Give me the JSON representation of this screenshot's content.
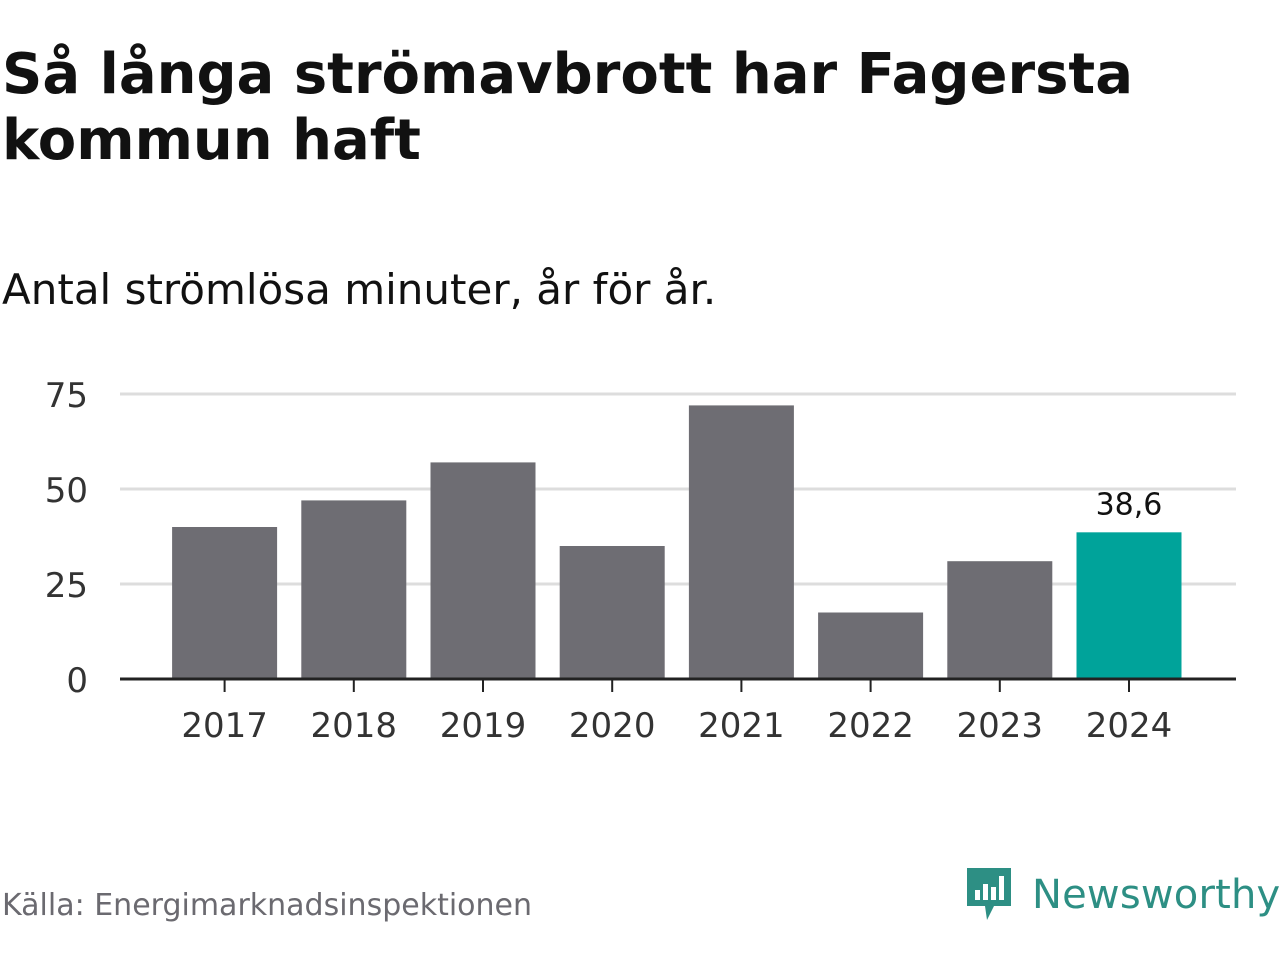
{
  "header": {
    "title": "Så långa strömavbrott har Fagersta kommun haft",
    "subtitle": "Antal strömlösa minuter, år för år."
  },
  "footer": {
    "source": "Källa: Energimarknadsinspektionen",
    "brand": "Newsworthy"
  },
  "colors": {
    "bar": "#6e6d73",
    "highlight": "#00a39a",
    "grid": "#dddddd",
    "axis": "#222222",
    "brand": "#2d8f84"
  },
  "chart_data": {
    "type": "bar",
    "title": "Så långa strömavbrott har Fagersta kommun haft",
    "subtitle": "Antal strömlösa minuter, år för år.",
    "categories": [
      "2017",
      "2018",
      "2019",
      "2020",
      "2021",
      "2022",
      "2023",
      "2024"
    ],
    "values": [
      40,
      47,
      57,
      35,
      72,
      17.5,
      31,
      38.6
    ],
    "highlight_index": 7,
    "data_labels": [
      {
        "index": 7,
        "text": "38,6"
      }
    ],
    "yticks": [
      0,
      25,
      50,
      75
    ],
    "ylim": [
      0,
      75
    ],
    "grid": true,
    "xlabel": "",
    "ylabel": ""
  }
}
